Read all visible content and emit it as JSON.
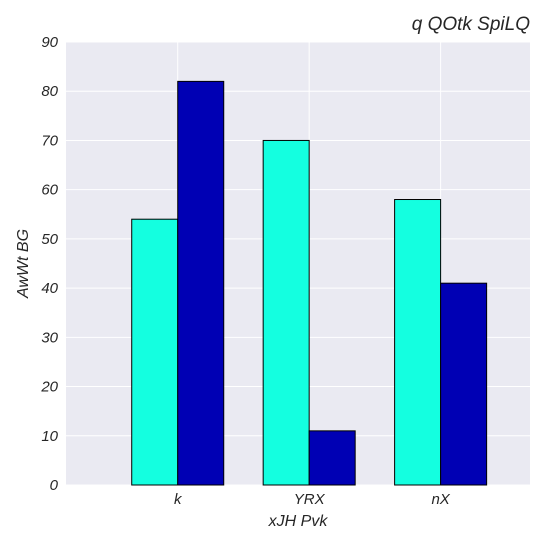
{
  "chart_data": {
    "type": "bar",
    "title": "q QOtk SpiLQ",
    "xlabel": "xJH Pvk",
    "ylabel": "AwWt BG",
    "categories": [
      "k",
      "YRX",
      "nX"
    ],
    "series": [
      {
        "values": [
          54,
          70,
          58
        ],
        "color": "#14ffe0"
      },
      {
        "values": [
          82,
          11,
          41
        ],
        "color": "#0000b4"
      }
    ],
    "ylim": [
      0,
      90
    ],
    "yticks": [
      0,
      10,
      20,
      30,
      40,
      50,
      60,
      70,
      80,
      90
    ],
    "grid": true,
    "plot_background": "#eaeaf2",
    "grid_color": "#ffffff",
    "bar_edge_color": "#000000"
  }
}
